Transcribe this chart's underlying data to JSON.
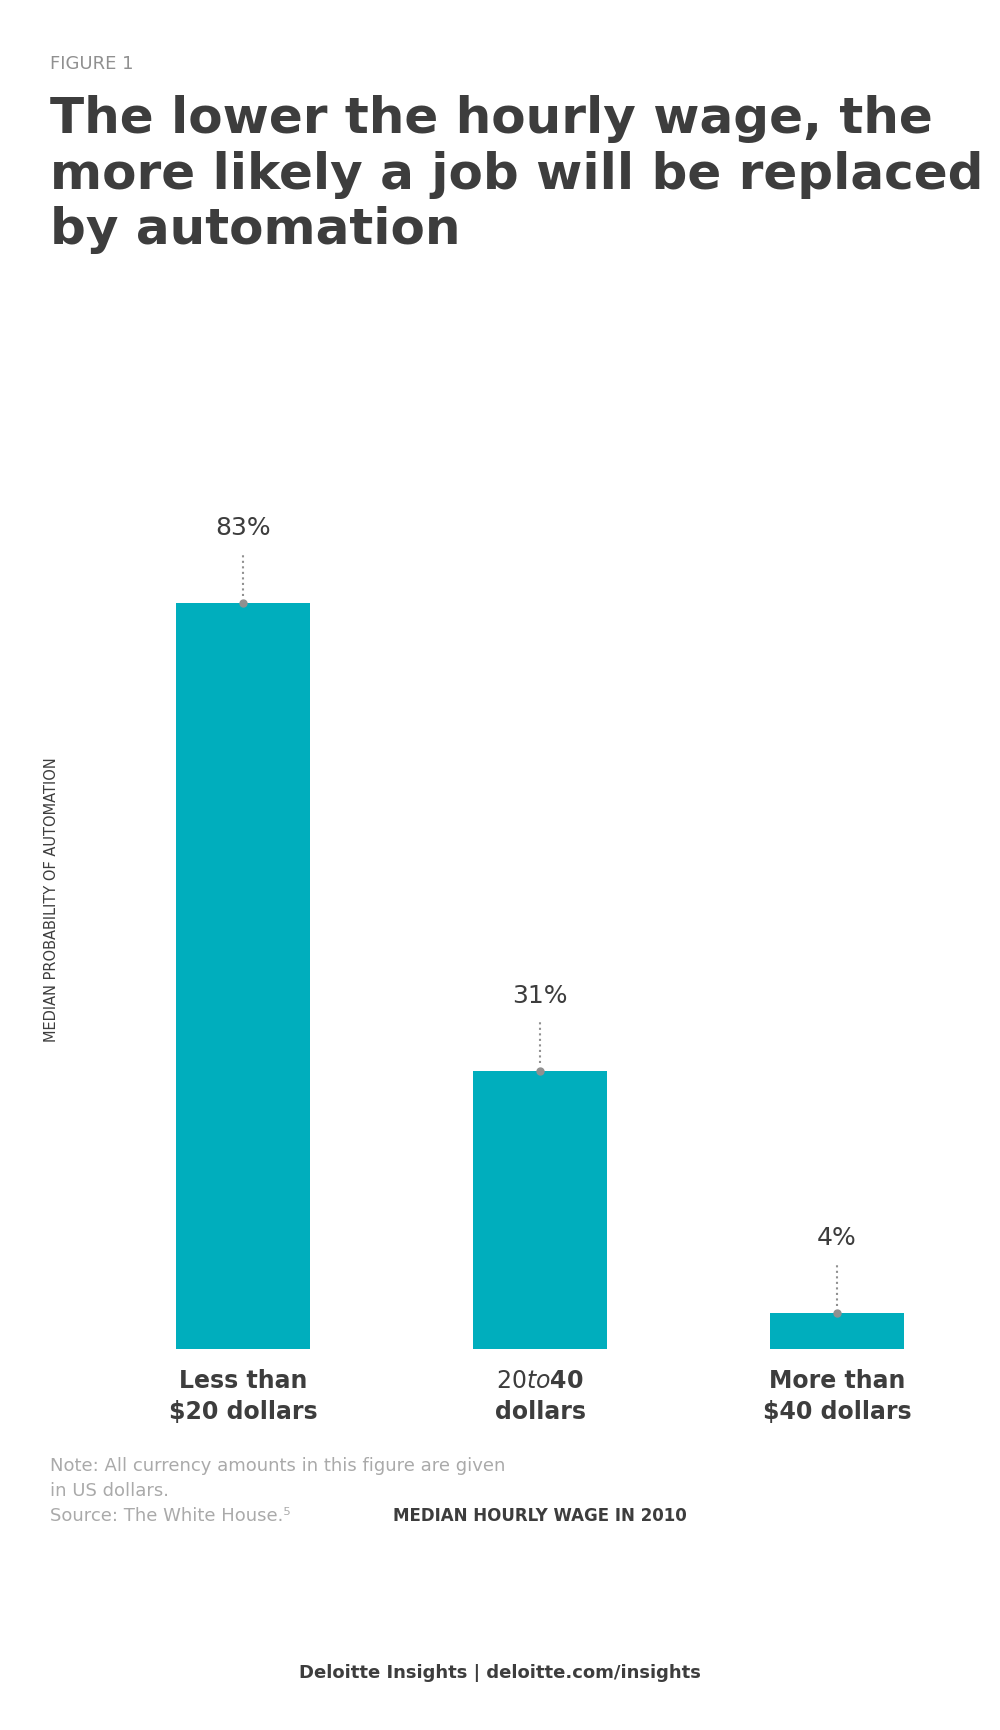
{
  "figure_label": "FIGURE 1",
  "title": "The lower the hourly wage, the\nmore likely a job will be replaced\nby automation",
  "categories": [
    "Less than\n$20 dollars",
    "$20 to $40\ndollars",
    "More than\n$40 dollars"
  ],
  "values": [
    83,
    31,
    4
  ],
  "labels": [
    "83%",
    "31%",
    "4%"
  ],
  "bar_color": "#00AEBD",
  "ylabel": "MEDIAN PROBABILITY OF AUTOMATION",
  "xlabel": "MEDIAN HOURLY WAGE IN 2010",
  "note": "Note: All currency amounts in this figure are given\nin US dollars.\nSource: The White House.⁵",
  "footer": "Deloitte Insights | deloitte.com/insights",
  "background_color": "#ffffff",
  "title_color": "#3d3d3d",
  "figure_label_color": "#909090",
  "dot_color": "#909090",
  "label_color": "#3d3d3d",
  "xlabel_color": "#3d3d3d",
  "ylabel_color": "#3d3d3d",
  "note_color": "#aaaaaa",
  "footer_color": "#3d3d3d",
  "ylim": [
    0,
    100
  ],
  "bar_width": 0.45
}
